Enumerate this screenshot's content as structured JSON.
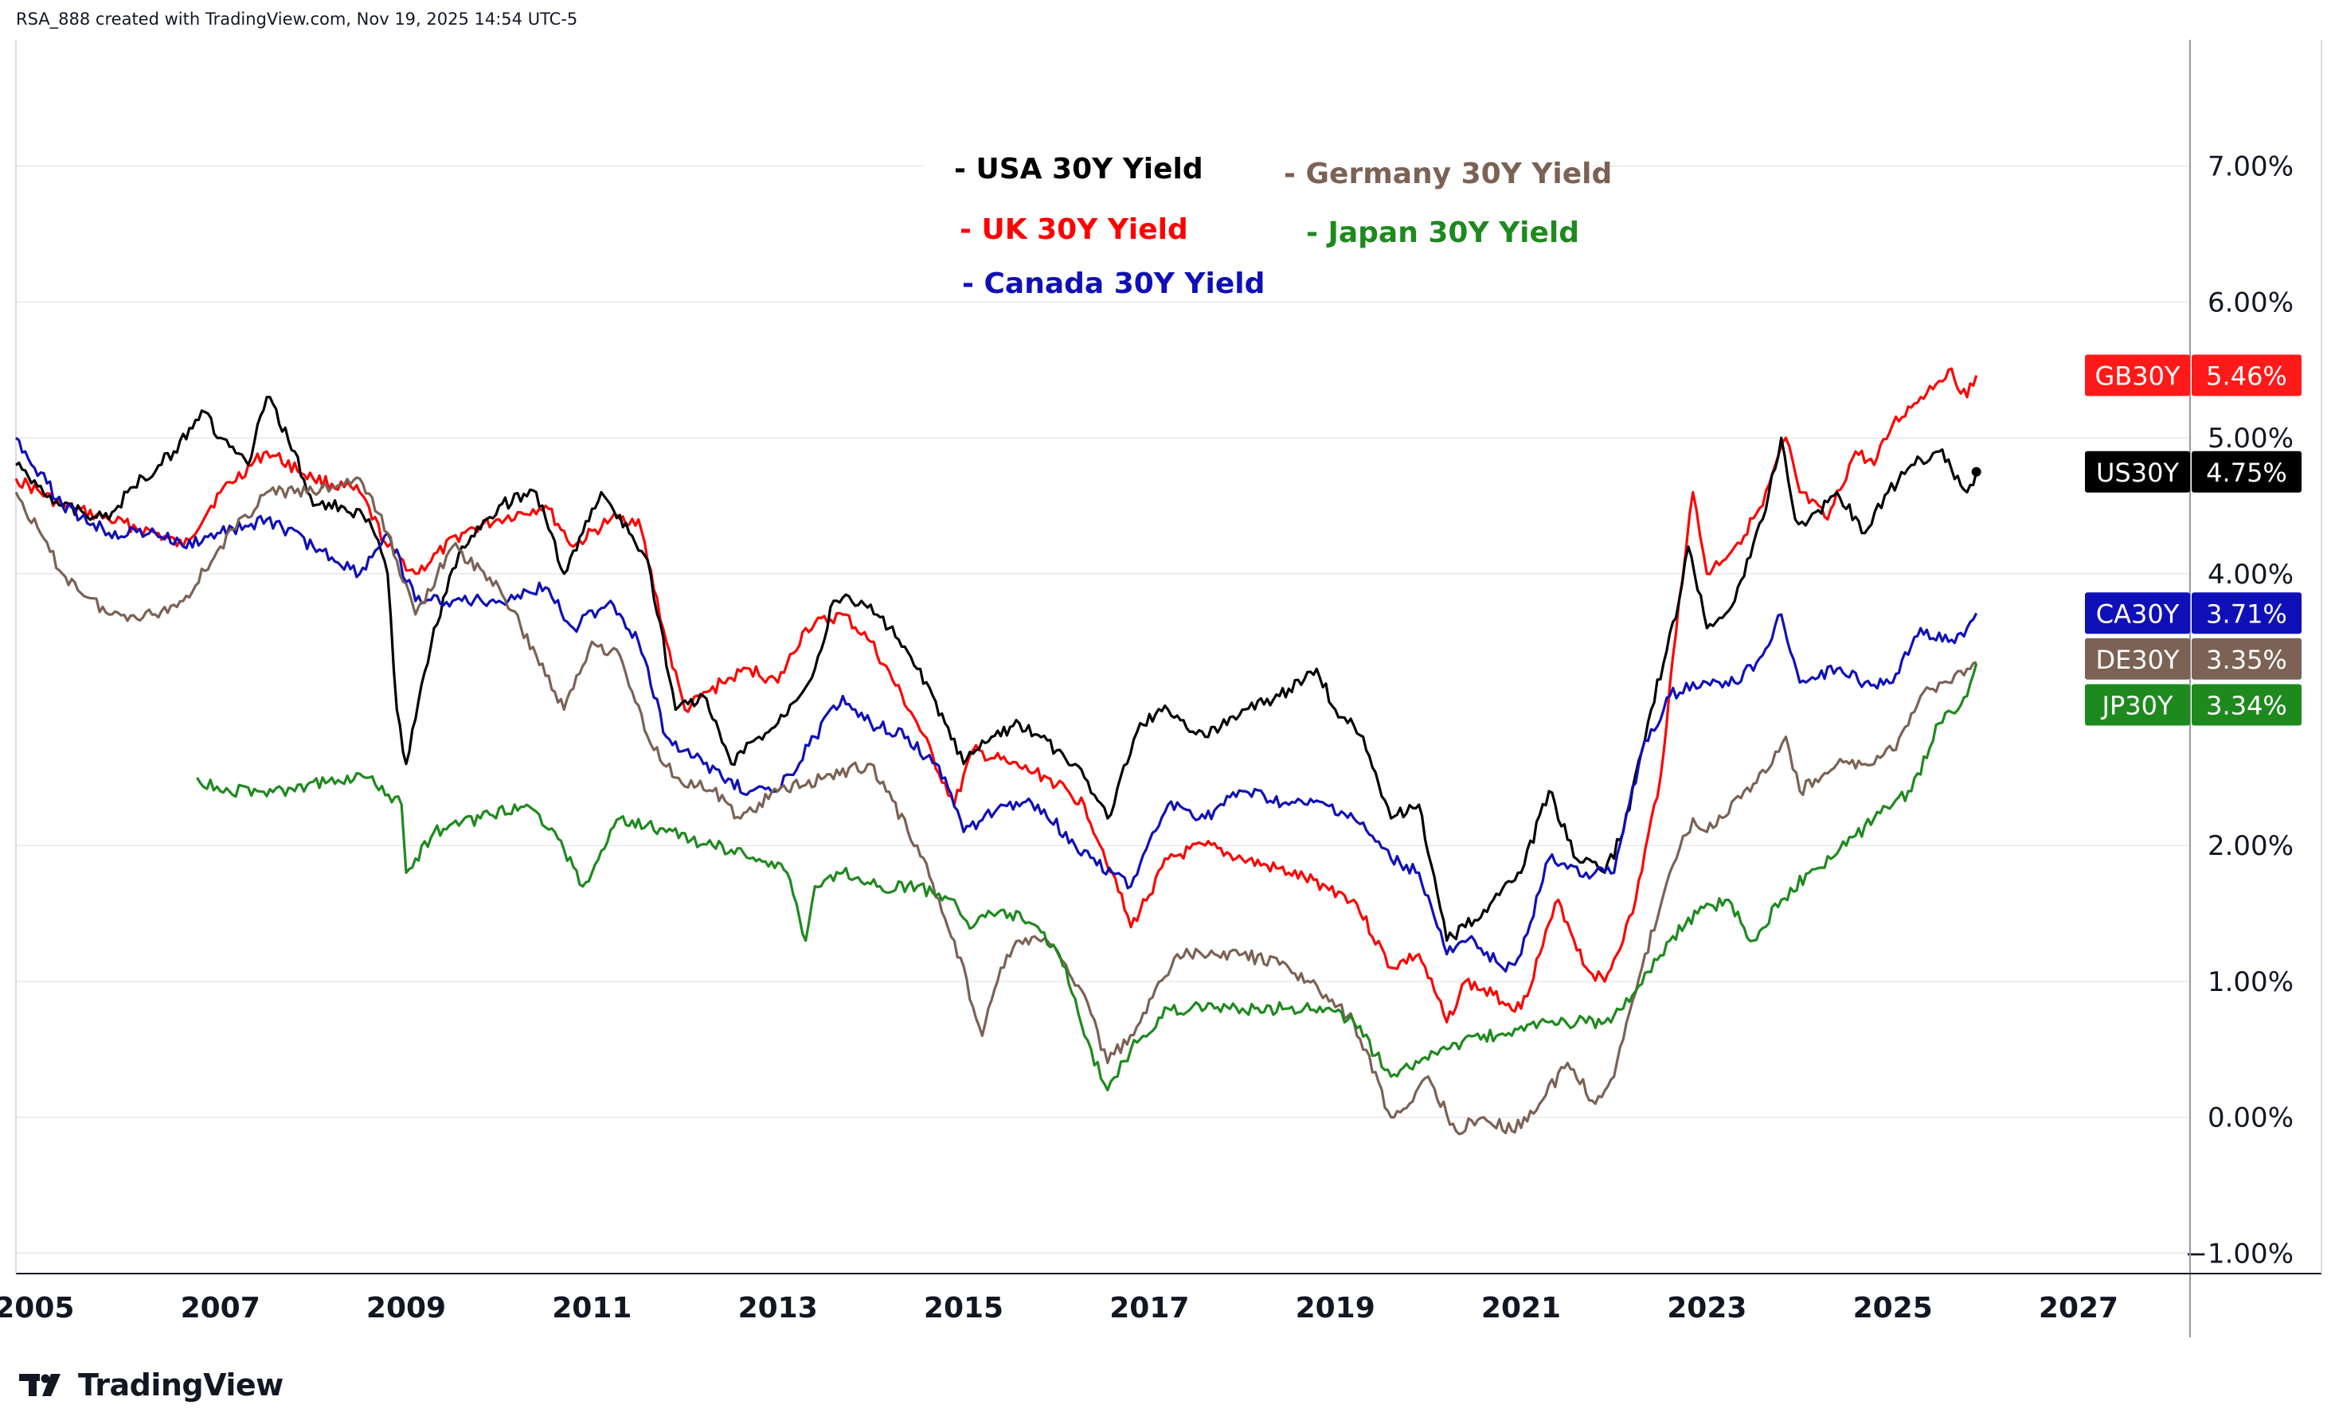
{
  "header": {
    "text": "RSA_888 created with TradingView.com, Nov 19, 2025 14:54 UTC-5"
  },
  "brand": {
    "name": "TradingView"
  },
  "legend": {
    "items": [
      {
        "label": "- USA 30Y Yield",
        "color": "#000000"
      },
      {
        "label": "- UK 30Y Yield",
        "color": "#ff0000"
      },
      {
        "label": "- Canada 30Y Yield",
        "color": "#1010b8"
      },
      {
        "label": "- Germany 30Y Yield",
        "color": "#7b6254"
      },
      {
        "label": "- Japan 30Y Yield",
        "color": "#1e8a1e"
      }
    ]
  },
  "chart_data": {
    "type": "line",
    "x_tick_labels": [
      "2005",
      "2007",
      "2009",
      "2011",
      "2013",
      "2015",
      "2017",
      "2019",
      "2021",
      "2023",
      "2025",
      "2027"
    ],
    "x_ticks": [
      2005,
      2007,
      2009,
      2011,
      2013,
      2015,
      2017,
      2019,
      2021,
      2023,
      2025,
      2027
    ],
    "y_tick_labels": [
      "7.00%",
      "6.00%",
      "5.00%",
      "4.00%",
      "2.00%",
      "1.00%",
      "0.00%",
      "−1.00%"
    ],
    "y_ticks": [
      7,
      6,
      5,
      4,
      2,
      1,
      0,
      -1
    ],
    "xlim": [
      2004.8,
      2028.2
    ],
    "ylim": [
      -1.15,
      7.9
    ],
    "grid": true,
    "series": [
      {
        "name": "UK 30Y Yield",
        "badge": "GB30Y",
        "last_value": "5.46%",
        "color": "#ff0000",
        "x": [
          2004.8,
          2005.3,
          2005.8,
          2006.3,
          2006.6,
          2007.0,
          2007.5,
          2008.0,
          2008.5,
          2008.8,
          2009.1,
          2009.6,
          2010.0,
          2010.5,
          2010.8,
          2011.2,
          2011.5,
          2011.8,
          2012.0,
          2012.4,
          2012.7,
          2013.0,
          2013.3,
          2013.7,
          2014.0,
          2014.5,
          2014.9,
          2015.1,
          2015.5,
          2015.9,
          2016.3,
          2016.6,
          2016.8,
          2017.2,
          2017.6,
          2018.0,
          2018.5,
          2018.9,
          2019.2,
          2019.6,
          2019.9,
          2020.2,
          2020.4,
          2020.7,
          2021.0,
          2021.4,
          2021.7,
          2021.9,
          2022.2,
          2022.5,
          2022.7,
          2022.85,
          2023.0,
          2023.3,
          2023.6,
          2023.85,
          2024.0,
          2024.3,
          2024.6,
          2024.8,
          2025.0,
          2025.3,
          2025.6,
          2025.8,
          2025.9
        ],
        "y": [
          4.7,
          4.5,
          4.4,
          4.3,
          4.2,
          4.6,
          4.9,
          4.7,
          4.6,
          4.2,
          4.0,
          4.3,
          4.4,
          4.5,
          4.2,
          4.4,
          4.4,
          3.5,
          3.0,
          3.2,
          3.3,
          3.2,
          3.6,
          3.7,
          3.5,
          2.9,
          2.3,
          2.7,
          2.6,
          2.5,
          2.3,
          1.8,
          1.4,
          1.9,
          2.0,
          1.9,
          1.8,
          1.7,
          1.6,
          1.1,
          1.2,
          0.7,
          1.0,
          0.9,
          0.8,
          1.6,
          1.1,
          1.0,
          1.5,
          2.5,
          3.8,
          4.6,
          4.0,
          4.2,
          4.5,
          5.0,
          4.6,
          4.4,
          4.9,
          4.8,
          5.1,
          5.3,
          5.5,
          5.3,
          5.46
        ]
      },
      {
        "name": "USA 30Y Yield",
        "badge": "US30Y",
        "last_value": "4.75%",
        "color": "#000000",
        "x": [
          2004.8,
          2005.3,
          2005.8,
          2006.0,
          2006.5,
          2006.8,
          2007.0,
          2007.3,
          2007.5,
          2007.8,
          2008.0,
          2008.3,
          2008.6,
          2008.8,
          2008.9,
          2009.0,
          2009.3,
          2009.6,
          2010.0,
          2010.4,
          2010.7,
          2010.9,
          2011.1,
          2011.4,
          2011.6,
          2011.9,
          2012.2,
          2012.5,
          2012.8,
          2013.0,
          2013.4,
          2013.6,
          2013.9,
          2014.2,
          2014.5,
          2014.8,
          2015.0,
          2015.3,
          2015.6,
          2016.0,
          2016.3,
          2016.55,
          2016.9,
          2017.2,
          2017.6,
          2018.0,
          2018.4,
          2018.8,
          2019.0,
          2019.3,
          2019.6,
          2019.9,
          2020.2,
          2020.4,
          2020.7,
          2021.0,
          2021.3,
          2021.6,
          2021.9,
          2022.1,
          2022.4,
          2022.7,
          2022.8,
          2023.0,
          2023.3,
          2023.6,
          2023.8,
          2023.95,
          2024.1,
          2024.4,
          2024.7,
          2024.95,
          2025.2,
          2025.5,
          2025.8,
          2025.9
        ],
        "y": [
          4.8,
          4.5,
          4.4,
          4.6,
          4.9,
          5.2,
          5.0,
          4.8,
          5.3,
          4.9,
          4.5,
          4.5,
          4.4,
          4.0,
          3.0,
          2.6,
          3.6,
          4.2,
          4.5,
          4.6,
          4.0,
          4.3,
          4.6,
          4.3,
          4.1,
          3.0,
          3.1,
          2.6,
          2.8,
          2.9,
          3.3,
          3.8,
          3.8,
          3.6,
          3.3,
          2.9,
          2.6,
          2.8,
          2.9,
          2.7,
          2.5,
          2.2,
          2.9,
          3.0,
          2.8,
          3.0,
          3.1,
          3.3,
          3.0,
          2.8,
          2.2,
          2.3,
          1.3,
          1.4,
          1.6,
          1.8,
          2.4,
          1.9,
          1.8,
          2.1,
          3.0,
          3.8,
          4.2,
          3.6,
          3.8,
          4.4,
          5.0,
          4.4,
          4.4,
          4.6,
          4.3,
          4.6,
          4.8,
          4.9,
          4.6,
          4.75
        ]
      },
      {
        "name": "Canada 30Y Yield",
        "badge": "CA30Y",
        "last_value": "3.71%",
        "color": "#1010b8",
        "x": [
          2004.8,
          2005.3,
          2005.8,
          2006.3,
          2006.6,
          2007.0,
          2007.5,
          2008.0,
          2008.5,
          2008.8,
          2009.1,
          2009.5,
          2010.0,
          2010.5,
          2010.8,
          2011.2,
          2011.5,
          2011.8,
          2012.0,
          2012.4,
          2012.7,
          2013.0,
          2013.4,
          2013.7,
          2014.0,
          2014.4,
          2014.8,
          2015.0,
          2015.4,
          2015.8,
          2016.2,
          2016.6,
          2016.8,
          2017.2,
          2017.6,
          2018.0,
          2018.5,
          2018.9,
          2019.2,
          2019.6,
          2019.9,
          2020.2,
          2020.5,
          2020.8,
          2021.0,
          2021.3,
          2021.7,
          2022.0,
          2022.3,
          2022.6,
          2022.85,
          2023.0,
          2023.3,
          2023.6,
          2023.8,
          2024.0,
          2024.4,
          2024.7,
          2025.0,
          2025.3,
          2025.6,
          2025.8,
          2025.9
        ],
        "y": [
          5.0,
          4.5,
          4.3,
          4.3,
          4.2,
          4.3,
          4.4,
          4.2,
          4.0,
          4.3,
          3.8,
          3.8,
          3.8,
          3.9,
          3.6,
          3.8,
          3.5,
          2.8,
          2.7,
          2.5,
          2.4,
          2.4,
          2.8,
          3.1,
          2.9,
          2.8,
          2.5,
          2.1,
          2.3,
          2.3,
          2.0,
          1.8,
          1.7,
          2.3,
          2.2,
          2.4,
          2.3,
          2.3,
          2.2,
          1.9,
          1.8,
          1.2,
          1.3,
          1.1,
          1.2,
          1.9,
          1.8,
          1.8,
          2.7,
          3.1,
          3.2,
          3.2,
          3.2,
          3.4,
          3.7,
          3.2,
          3.3,
          3.2,
          3.2,
          3.6,
          3.5,
          3.6,
          3.71
        ]
      },
      {
        "name": "Germany 30Y Yield",
        "badge": "DE30Y",
        "last_value": "3.35%",
        "color": "#7b6254",
        "x": [
          2004.8,
          2005.3,
          2005.8,
          2006.3,
          2006.6,
          2007.0,
          2007.5,
          2008.0,
          2008.5,
          2008.8,
          2009.1,
          2009.5,
          2010.0,
          2010.4,
          2010.7,
          2011.0,
          2011.3,
          2011.6,
          2011.9,
          2012.3,
          2012.6,
          2013.0,
          2013.5,
          2014.0,
          2014.5,
          2014.9,
          2015.2,
          2015.4,
          2015.6,
          2015.9,
          2016.3,
          2016.55,
          2016.9,
          2017.3,
          2017.7,
          2018.0,
          2018.5,
          2018.9,
          2019.2,
          2019.6,
          2019.8,
          2020.0,
          2020.3,
          2020.6,
          2020.9,
          2021.2,
          2021.5,
          2021.8,
          2022.0,
          2022.3,
          2022.6,
          2022.85,
          2023.0,
          2023.4,
          2023.7,
          2023.85,
          2024.0,
          2024.4,
          2024.7,
          2025.0,
          2025.3,
          2025.6,
          2025.8,
          2025.9
        ],
        "y": [
          4.6,
          4.0,
          3.7,
          3.7,
          3.8,
          4.2,
          4.6,
          4.6,
          4.7,
          4.3,
          3.7,
          4.2,
          3.9,
          3.4,
          3.0,
          3.5,
          3.4,
          2.8,
          2.5,
          2.4,
          2.2,
          2.4,
          2.5,
          2.6,
          2.0,
          1.3,
          0.6,
          1.1,
          1.3,
          1.3,
          0.9,
          0.4,
          0.7,
          1.2,
          1.2,
          1.2,
          1.1,
          0.9,
          0.7,
          0.0,
          0.1,
          0.3,
          -0.1,
          0.0,
          -0.1,
          0.1,
          0.4,
          0.1,
          0.3,
          1.1,
          1.8,
          2.2,
          2.1,
          2.4,
          2.6,
          2.8,
          2.4,
          2.6,
          2.6,
          2.7,
          3.1,
          3.2,
          3.3,
          3.35
        ]
      },
      {
        "name": "Japan 30Y Yield",
        "badge": "JP30Y",
        "last_value": "3.34%",
        "color": "#1e8a1e",
        "x": [
          2006.75,
          2007.0,
          2007.4,
          2007.8,
          2008.2,
          2008.6,
          2008.95,
          2009.0,
          2009.3,
          2009.8,
          2010.3,
          2010.6,
          2010.9,
          2011.3,
          2011.8,
          2012.3,
          2012.8,
          2013.1,
          2013.3,
          2013.4,
          2013.7,
          2014.1,
          2014.5,
          2014.9,
          2015.1,
          2015.3,
          2015.5,
          2015.8,
          2016.1,
          2016.3,
          2016.55,
          2016.8,
          2017.2,
          2017.6,
          2018.0,
          2018.5,
          2018.9,
          2019.2,
          2019.6,
          2019.9,
          2020.2,
          2020.5,
          2020.9,
          2021.2,
          2021.6,
          2021.9,
          2022.2,
          2022.6,
          2022.9,
          2023.2,
          2023.5,
          2023.8,
          2024.1,
          2024.5,
          2024.8,
          2025.0,
          2025.2,
          2025.5,
          2025.8,
          2025.9
        ],
        "y": [
          2.5,
          2.4,
          2.4,
          2.4,
          2.5,
          2.5,
          2.3,
          1.8,
          2.1,
          2.2,
          2.3,
          2.1,
          1.7,
          2.2,
          2.1,
          2.0,
          1.9,
          1.8,
          1.3,
          1.7,
          1.8,
          1.7,
          1.7,
          1.6,
          1.4,
          1.5,
          1.5,
          1.4,
          1.1,
          0.6,
          0.2,
          0.5,
          0.8,
          0.8,
          0.8,
          0.8,
          0.8,
          0.7,
          0.3,
          0.4,
          0.5,
          0.6,
          0.6,
          0.7,
          0.7,
          0.7,
          0.9,
          1.3,
          1.5,
          1.6,
          1.3,
          1.6,
          1.8,
          2.0,
          2.2,
          2.3,
          2.4,
          2.9,
          3.1,
          3.34
        ]
      }
    ]
  }
}
